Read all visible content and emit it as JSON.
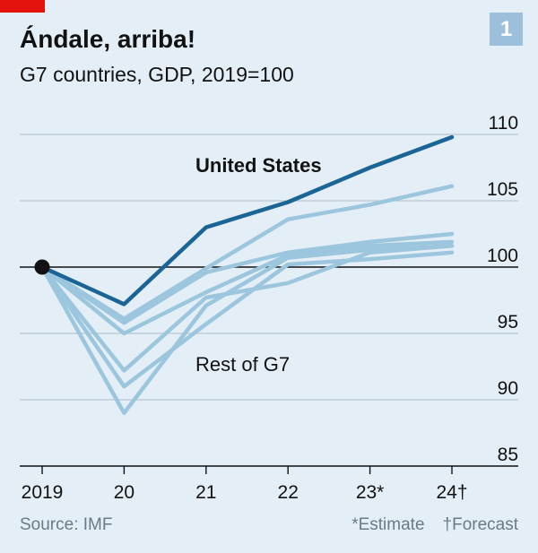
{
  "header": {
    "badge": "1",
    "title": "Ándale, arriba!",
    "subtitle": "G7 countries, GDP, 2019=100"
  },
  "footer": {
    "source": "Source: IMF",
    "estimate_note": "*Estimate",
    "forecast_note": "†Forecast"
  },
  "colors": {
    "background": "#e3eef6",
    "us_line": "#1a6496",
    "rest_lines": "#9cc6dd",
    "baseline": "#121212",
    "gridline": "#b7c6d1",
    "badge": "#9cc0dc",
    "brand_red": "#e3120b"
  },
  "chart_data": {
    "type": "line",
    "categories": [
      "2019",
      "20",
      "21",
      "22",
      "23*",
      "24†"
    ],
    "ylim": [
      85,
      110
    ],
    "yticks": [
      85,
      90,
      95,
      100,
      105,
      110
    ],
    "baseline": 100,
    "grid": true,
    "labels": {
      "us": "United States",
      "rest": "Rest of G7"
    },
    "series": [
      {
        "name": "United States",
        "highlight": true,
        "values": [
          100,
          97.2,
          103.0,
          104.9,
          107.5,
          109.8
        ]
      },
      {
        "values": [
          100,
          96.1,
          99.9,
          103.6,
          104.7,
          106.1
        ]
      },
      {
        "values": [
          100,
          95.8,
          99.6,
          101.1,
          101.9,
          102.5
        ]
      },
      {
        "values": [
          100,
          95.0,
          98.1,
          100.9,
          101.6,
          101.9
        ]
      },
      {
        "values": [
          100,
          92.2,
          97.7,
          98.8,
          101.1,
          101.6
        ]
      },
      {
        "values": [
          100,
          91.0,
          95.7,
          100.2,
          100.6,
          101.1
        ]
      },
      {
        "values": [
          100,
          89.0,
          97.1,
          100.7,
          101.3,
          101.6
        ]
      }
    ]
  }
}
